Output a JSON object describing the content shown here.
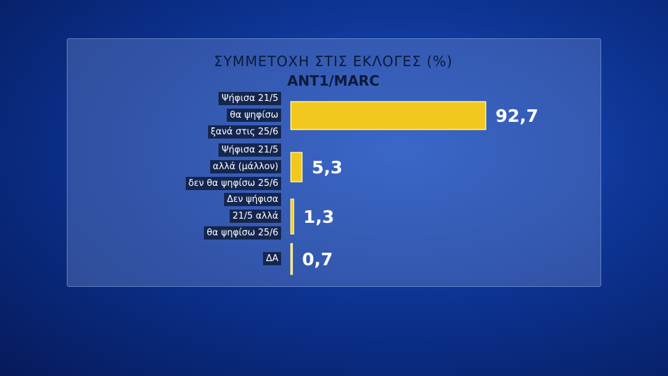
{
  "chart_data": {
    "type": "hbar",
    "title": "ΣΥΜΜΕΤΟΧΗ ΣΤΙΣ ΕΚΛΟΓΕΣ (%)",
    "subtitle": "ANT1/MARC",
    "categories": [
      "Ψήφισα 21/5\nθα ψηφίσω\nξανά στις 25/6",
      "Ψήφισα  21/5\nαλλά (μάλλον)\nδεν θα ψηφίσω 25/6",
      "Δεν ψήφισα\n21/5 αλλά\nθα ψηφίσω  25/6",
      "ΔΑ"
    ],
    "values": [
      92.7,
      5.3,
      1.3,
      0.7
    ],
    "value_labels": [
      "92,7",
      "5,3",
      "1,3",
      "0,7"
    ],
    "color": "#f2c81e"
  }
}
